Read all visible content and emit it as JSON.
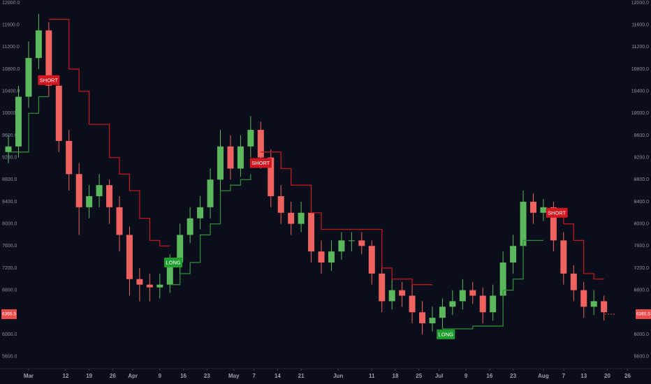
{
  "chart_data": {
    "type": "candlestick",
    "x": [
      -6,
      -3,
      0,
      3,
      6,
      9,
      12,
      15,
      18,
      21,
      24,
      27,
      30,
      33,
      36,
      39,
      42,
      45,
      48,
      51,
      54,
      57,
      60,
      63,
      66,
      69,
      72,
      75,
      78,
      81,
      84,
      87,
      90,
      93,
      96,
      99,
      102,
      105,
      108,
      111,
      114,
      117,
      120,
      123,
      126,
      129,
      132,
      135,
      138,
      141,
      144,
      147,
      150,
      153,
      156,
      159,
      162,
      165,
      168,
      171
    ],
    "open": [
      9300,
      9400,
      10300,
      11000,
      11500,
      10500,
      9500,
      8900,
      8300,
      8500,
      8700,
      8300,
      7800,
      7000,
      6900,
      6850,
      6900,
      7300,
      7800,
      8100,
      8300,
      8800,
      9400,
      9000,
      9400,
      9700,
      9200,
      8500,
      8200,
      8000,
      8200,
      7500,
      7300,
      7500,
      7700,
      7700,
      7600,
      7100,
      6600,
      6800,
      6700,
      6400,
      6200,
      6300,
      6500,
      6600,
      6800,
      6700,
      6400,
      6700,
      7300,
      7600,
      8400,
      8200,
      8300,
      7700,
      7100,
      6800,
      6500,
      6600
    ],
    "high": [
      9600,
      10500,
      11300,
      11800,
      11650,
      10650,
      9700,
      9100,
      8700,
      8900,
      8800,
      8500,
      7950,
      7200,
      7100,
      7100,
      7450,
      8000,
      8300,
      8500,
      9000,
      9700,
      9600,
      9600,
      9950,
      9850,
      9350,
      8700,
      8400,
      8400,
      8300,
      7700,
      7700,
      7850,
      7850,
      7850,
      7700,
      7250,
      7000,
      6950,
      6900,
      6600,
      6500,
      6650,
      6800,
      7000,
      6950,
      6850,
      6900,
      7500,
      7800,
      8600,
      8550,
      8450,
      8400,
      7850,
      7250,
      6950,
      6800,
      6700
    ],
    "low": [
      9100,
      9200,
      10100,
      10800,
      10300,
      9300,
      8600,
      7800,
      8100,
      8300,
      8000,
      7500,
      6700,
      6600,
      6600,
      6650,
      6750,
      7100,
      7650,
      7900,
      8100,
      8600,
      8800,
      8850,
      9200,
      9000,
      8300,
      8000,
      7800,
      7850,
      7300,
      7100,
      7150,
      7350,
      7500,
      7450,
      6900,
      6400,
      6450,
      6500,
      6200,
      6000,
      6050,
      6100,
      6350,
      6450,
      6550,
      6200,
      6250,
      6550,
      7100,
      7400,
      8000,
      8050,
      7500,
      6900,
      6600,
      6300,
      6350,
      6250
    ],
    "close": [
      9400,
      10300,
      11000,
      11500,
      10500,
      9500,
      8900,
      8300,
      8500,
      8700,
      8300,
      7800,
      7000,
      6900,
      6850,
      6900,
      7300,
      7800,
      8100,
      8300,
      8800,
      9400,
      9000,
      9400,
      9700,
      9200,
      8500,
      8200,
      8000,
      8200,
      7500,
      7300,
      7500,
      7700,
      7700,
      7600,
      7100,
      6600,
      6800,
      6700,
      6400,
      6200,
      6300,
      6500,
      6600,
      6800,
      6700,
      6400,
      6700,
      7300,
      7600,
      8400,
      8200,
      8300,
      7700,
      7100,
      6800,
      6500,
      6600,
      6400
    ],
    "up_color": "#5cb85c",
    "down_color": "#f0625f",
    "series": [
      {
        "color": "#2e8b3a",
        "values": [
          9300,
          9300,
          10000,
          10300,
          10300,
          null,
          null,
          null,
          null,
          null,
          null,
          null,
          null,
          null,
          null,
          null,
          6900,
          7100,
          7300,
          7800,
          8000,
          8600,
          8700,
          8800,
          8900,
          null,
          null,
          null,
          null,
          null,
          null,
          null,
          null,
          null,
          null,
          null,
          null,
          null,
          null,
          null,
          null,
          null,
          null,
          6100,
          6100,
          6100,
          6150,
          6150,
          6150,
          6800,
          7000,
          7700,
          7700,
          7700,
          null,
          null,
          null,
          null,
          null,
          null
        ]
      },
      {
        "color": "#c0161e",
        "values": [
          null,
          null,
          null,
          null,
          11700,
          11700,
          10800,
          10400,
          9800,
          9800,
          9200,
          8900,
          8600,
          8100,
          7700,
          7600,
          7600,
          null,
          null,
          null,
          null,
          null,
          null,
          null,
          null,
          9300,
          9300,
          9000,
          8700,
          8700,
          8200,
          7900,
          7900,
          7900,
          7900,
          7900,
          7900,
          7200,
          7000,
          7000,
          6900,
          6900,
          6900,
          null,
          null,
          null,
          null,
          null,
          null,
          null,
          null,
          null,
          null,
          null,
          8200,
          8000,
          7700,
          7100,
          7000,
          7000
        ]
      }
    ],
    "signals": [
      {
        "text": "SHORT",
        "x": 6,
        "y": 10600,
        "color": "#d0161f"
      },
      {
        "text": "LONG",
        "x": 43,
        "y": 7300,
        "color": "#1e9e2c"
      },
      {
        "text": "SHORT",
        "x": 69,
        "y": 9100,
        "color": "#d0161f"
      },
      {
        "text": "LONG",
        "x": 124,
        "y": 6000,
        "color": "#1e9e2c"
      },
      {
        "text": "SHORT",
        "x": 157,
        "y": 8200,
        "color": "#d0161f"
      }
    ],
    "last_price": 6365.5,
    "xlim": [
      -8.5,
      180
    ],
    "ylim": [
      5380,
      12050
    ],
    "xticks": [
      {
        "value": 0,
        "label": "Mar"
      },
      {
        "value": 11,
        "label": "12"
      },
      {
        "value": 18,
        "label": "19"
      },
      {
        "value": 25,
        "label": "26"
      },
      {
        "value": 31,
        "label": "Apr"
      },
      {
        "value": 39,
        "label": "9"
      },
      {
        "value": 46,
        "label": "16"
      },
      {
        "value": 53,
        "label": "23"
      },
      {
        "value": 61,
        "label": "May"
      },
      {
        "value": 67,
        "label": "7"
      },
      {
        "value": 74,
        "label": "14"
      },
      {
        "value": 81,
        "label": "21"
      },
      {
        "value": 92,
        "label": "Jun"
      },
      {
        "value": 102,
        "label": "11"
      },
      {
        "value": 109,
        "label": "18"
      },
      {
        "value": 116,
        "label": "25"
      },
      {
        "value": 122,
        "label": "Jul"
      },
      {
        "value": 130,
        "label": "9"
      },
      {
        "value": 137,
        "label": "16"
      },
      {
        "value": 144,
        "label": "23"
      },
      {
        "value": 153,
        "label": "Aug"
      },
      {
        "value": 159,
        "label": "7"
      },
      {
        "value": 165,
        "label": "13"
      },
      {
        "value": 172,
        "label": "20"
      },
      {
        "value": 178,
        "label": "26"
      }
    ],
    "yticks": [
      {
        "value": 12000,
        "label": "12000.0"
      },
      {
        "value": 11600,
        "label": "11600.0"
      },
      {
        "value": 11200,
        "label": "11200.0"
      },
      {
        "value": 10800,
        "label": "10800.0"
      },
      {
        "value": 10400,
        "label": "10400.0"
      },
      {
        "value": 10000,
        "label": "10000.0"
      },
      {
        "value": 9600,
        "label": "9600.0"
      },
      {
        "value": 9200,
        "label": "9200.0"
      },
      {
        "value": 8800,
        "label": "8800.0"
      },
      {
        "value": 8400,
        "label": "8400.0"
      },
      {
        "value": 8000,
        "label": "8000.0"
      },
      {
        "value": 7600,
        "label": "7600.0"
      },
      {
        "value": 7200,
        "label": "7200.0"
      },
      {
        "value": 6800,
        "label": "6800.0"
      },
      {
        "value": 6000,
        "label": "6000.0"
      },
      {
        "value": 5600,
        "label": "5600.0"
      }
    ]
  }
}
